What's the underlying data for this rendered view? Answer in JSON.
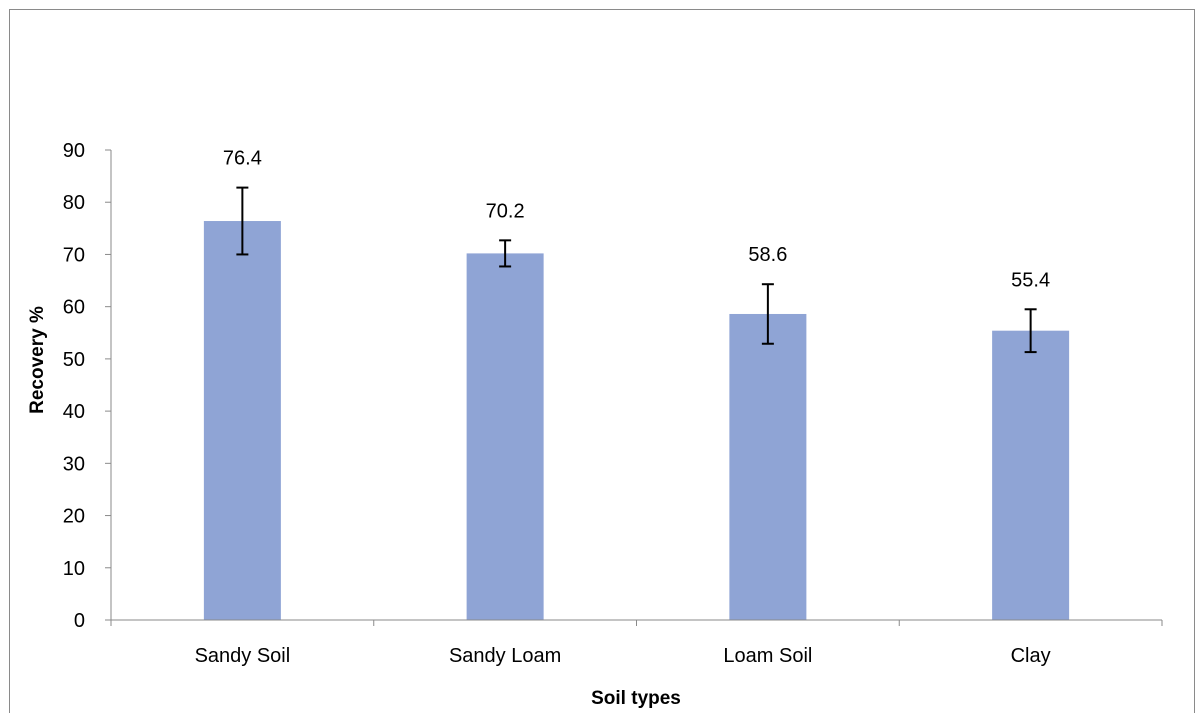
{
  "chart_data": {
    "type": "bar",
    "categories": [
      "Sandy Soil",
      "Sandy Loam",
      "Loam Soil",
      "Clay"
    ],
    "values": [
      76.4,
      70.2,
      58.6,
      55.4
    ],
    "error_bars": [
      {
        "low": 70.0,
        "high": 82.8
      },
      {
        "low": 67.7,
        "high": 72.7
      },
      {
        "low": 52.9,
        "high": 64.3
      },
      {
        "low": 51.3,
        "high": 59.5
      }
    ],
    "data_labels": [
      "76.4",
      "70.2",
      "58.6",
      "55.4"
    ],
    "xlabel": "Soil types",
    "ylabel": "Recovery %",
    "ylim": [
      0,
      90
    ],
    "yticks": [
      0,
      10,
      20,
      30,
      40,
      50,
      60,
      70,
      80,
      90
    ],
    "bar_color": "#8FA4D5",
    "axis_color": "#8a8a8a",
    "grid": false,
    "legend": "none"
  }
}
